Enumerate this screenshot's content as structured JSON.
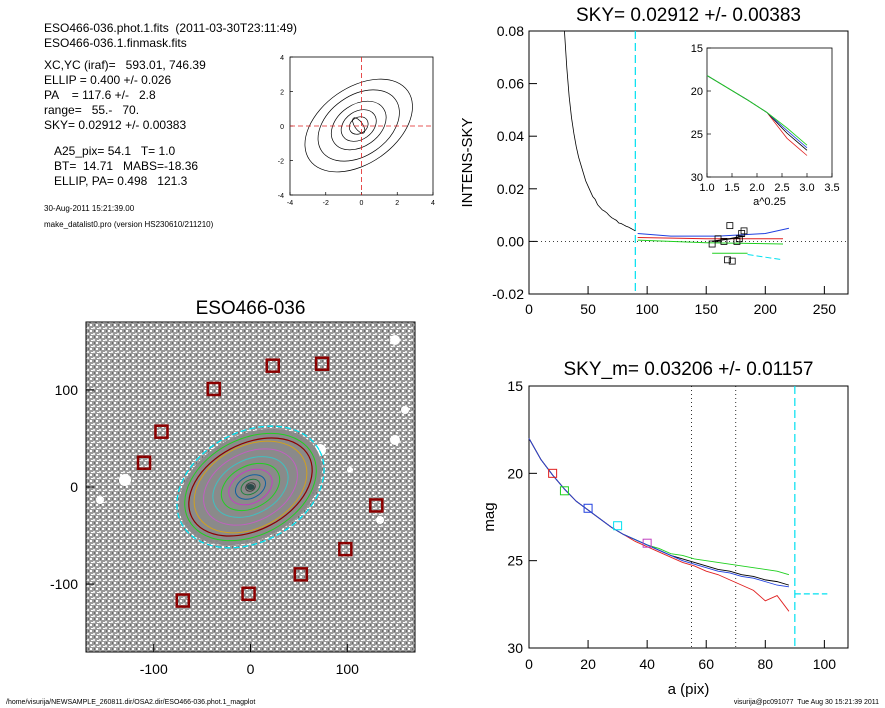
{
  "header": {
    "fits_file": "ESO466-036.phot.1.fits  (2011-03-30T23:11:49)",
    "mask_file": "ESO466-036.1.finmask.fits",
    "xc_yc": "XC,YC (iraf)=   593.01, 746.39",
    "ellip": "ELLIP = 0.400 +/- 0.026",
    "pa": "PA    = 117.6 +/-   2.8",
    "range": "range=   55.-   70.",
    "sky": "SKY= 0.02912 +/- 0.00383",
    "a25": "A25_pix= 54.1   T= 1.0",
    "bt": "BT=  14.71   MABS=-18.36",
    "ellip_pa": "ELLIP, PA= 0.498   121.3",
    "date": "30-Aug-2011 15:21:39.00",
    "program": "make_datalist0.pro (version HS230610/211210)"
  },
  "footer": {
    "path": "/home/visurija/NEWSAMPLE_260811.dir/OSA2.dir/ESO466-036.phot.1_magplot",
    "user": "visurija@pc091077  Tue Aug 30 15:21:39 2011"
  },
  "colors": {
    "cyan": "#00e0f0",
    "red": "#e02020",
    "green": "#20d020",
    "blue": "#2040e0",
    "magenta": "#c040c0",
    "darkred": "#8b0000"
  },
  "chart_data": [
    {
      "name": "contour",
      "type": "line",
      "xlim": [
        -4,
        4
      ],
      "ylim": [
        -4,
        4
      ],
      "xticks": [
        "-4",
        "-2",
        "0",
        "2",
        "4"
      ],
      "yticks": [
        "-4",
        "-2",
        "0",
        "2",
        "4"
      ]
    },
    {
      "name": "sky_profile",
      "type": "line",
      "title": "SKY= 0.02912 +/- 0.00383",
      "ylabel": "INTENS-SKY",
      "xlim": [
        0,
        270
      ],
      "ylim": [
        -0.02,
        0.08
      ],
      "xticks": [
        "0",
        "50",
        "100",
        "150",
        "200",
        "250"
      ],
      "yticks": [
        "-0.02",
        "0.00",
        "0.02",
        "0.04",
        "0.06",
        "0.08"
      ],
      "profile_x": [
        30,
        32,
        34,
        36,
        38,
        40,
        42,
        44,
        46,
        48,
        50,
        52,
        54,
        56,
        58,
        60,
        62,
        64,
        66,
        68,
        70,
        72,
        74,
        76,
        78,
        80,
        82,
        84,
        86,
        88,
        90
      ],
      "profile_y": [
        0.08,
        0.066,
        0.055,
        0.047,
        0.041,
        0.036,
        0.032,
        0.029,
        0.026,
        0.023,
        0.021,
        0.019,
        0.017,
        0.016,
        0.014,
        0.013,
        0.012,
        0.0115,
        0.0108,
        0.0098,
        0.009,
        0.0085,
        0.008,
        0.007,
        0.0068,
        0.0063,
        0.0058,
        0.0055,
        0.005,
        0.0045,
        0.004
      ],
      "sky_markers": [
        [
          155,
          -0.001
        ],
        [
          160,
          0.001
        ],
        [
          165,
          0.0
        ],
        [
          168,
          -0.007
        ],
        [
          170,
          0.006
        ],
        [
          172,
          -0.0075
        ],
        [
          178,
          0.001
        ],
        [
          180,
          0.003
        ],
        [
          182,
          0.004
        ],
        [
          176,
          0.0
        ]
      ],
      "vline": 90,
      "inset": {
        "xlabel": "a^0.25",
        "xlim": [
          1.0,
          3.5
        ],
        "ylim": [
          15,
          30
        ],
        "xticks": [
          "1.0",
          "1.5",
          "2.0",
          "2.5",
          "3.0",
          "3.5"
        ],
        "yticks": [
          "15",
          "20",
          "25",
          "30"
        ]
      }
    },
    {
      "name": "image",
      "type": "scatter",
      "title": "ESO466-036",
      "xlim": [
        -170,
        170
      ],
      "ylim": [
        -170,
        170
      ],
      "xticks": [
        "-100",
        "0",
        "100"
      ],
      "yticks": [
        "-100",
        "0",
        "100"
      ],
      "stars": [
        [
          -38,
          101
        ],
        [
          23,
          125
        ],
        [
          74,
          127
        ],
        [
          -92,
          57
        ],
        [
          -110,
          25
        ],
        [
          130,
          -19
        ],
        [
          98,
          -64
        ],
        [
          52,
          -90
        ],
        [
          -2,
          -110
        ],
        [
          -70,
          -117
        ]
      ]
    },
    {
      "name": "magnitude_profile",
      "type": "line",
      "title": "SKY_m=  0.03206 +/- 0.01157",
      "xlabel": "a (pix)",
      "ylabel": "mag",
      "xlim": [
        0,
        108
      ],
      "ylim": [
        30,
        15
      ],
      "xticks": [
        "0",
        "20",
        "40",
        "60",
        "80",
        "100"
      ],
      "yticks": [
        "15",
        "20",
        "25",
        "30"
      ],
      "series": [
        {
          "color": "black",
          "x": [
            0,
            4,
            8,
            12,
            16,
            20,
            24,
            28,
            32,
            36,
            40,
            44,
            48,
            52,
            56,
            60,
            64,
            68,
            72,
            76,
            80,
            84,
            88
          ],
          "y": [
            18.0,
            19.2,
            20.1,
            20.9,
            21.6,
            22.1,
            22.6,
            23.1,
            23.5,
            23.8,
            24.1,
            24.4,
            24.7,
            24.9,
            25.1,
            25.3,
            25.5,
            25.6,
            25.8,
            25.9,
            26.1,
            26.2,
            26.4
          ]
        },
        {
          "color": "green",
          "x": [
            0,
            4,
            8,
            12,
            16,
            20,
            24,
            28,
            32,
            36,
            40,
            44,
            48,
            52,
            56,
            60,
            64,
            68,
            72,
            76,
            80,
            84,
            88
          ],
          "y": [
            18.0,
            19.2,
            20.1,
            20.9,
            21.6,
            22.1,
            22.6,
            23.1,
            23.5,
            23.8,
            24.1,
            24.3,
            24.6,
            24.7,
            24.9,
            25.0,
            25.1,
            25.2,
            25.3,
            25.4,
            25.5,
            25.6,
            25.8
          ]
        },
        {
          "color": "red",
          "x": [
            0,
            4,
            8,
            12,
            16,
            20,
            24,
            28,
            32,
            36,
            40,
            44,
            48,
            52,
            56,
            60,
            64,
            68,
            72,
            76,
            80,
            84,
            88
          ],
          "y": [
            18.0,
            19.2,
            20.1,
            20.9,
            21.6,
            22.1,
            22.6,
            23.1,
            23.5,
            23.9,
            24.2,
            24.5,
            24.8,
            25.1,
            25.3,
            25.6,
            25.8,
            26.1,
            26.4,
            26.7,
            27.3,
            27.0,
            27.9
          ]
        },
        {
          "color": "blue",
          "x": [
            0,
            4,
            8,
            12,
            16,
            20,
            24,
            28,
            32,
            36,
            40,
            44,
            48,
            52,
            56,
            60,
            64,
            68,
            72,
            76,
            80,
            84,
            88
          ],
          "y": [
            18.0,
            19.2,
            20.1,
            20.9,
            21.6,
            22.1,
            22.6,
            23.1,
            23.5,
            23.8,
            24.1,
            24.4,
            24.7,
            25.0,
            25.2,
            25.4,
            25.6,
            25.7,
            25.9,
            26.0,
            26.2,
            26.4,
            26.5
          ]
        }
      ],
      "markers": [
        {
          "x": 8,
          "y": 20.0,
          "color": "red"
        },
        {
          "x": 12,
          "y": 21.0,
          "color": "green"
        },
        {
          "x": 20,
          "y": 22.0,
          "color": "blue"
        },
        {
          "x": 30,
          "y": 23.0,
          "color": "cyan"
        },
        {
          "x": 40,
          "y": 24.0,
          "color": "magenta"
        }
      ],
      "vlines_dotted": [
        55,
        70
      ],
      "vline_dashed": 90,
      "sky_level": {
        "x": [
          90,
          101
        ],
        "y": 26.9
      }
    }
  ]
}
